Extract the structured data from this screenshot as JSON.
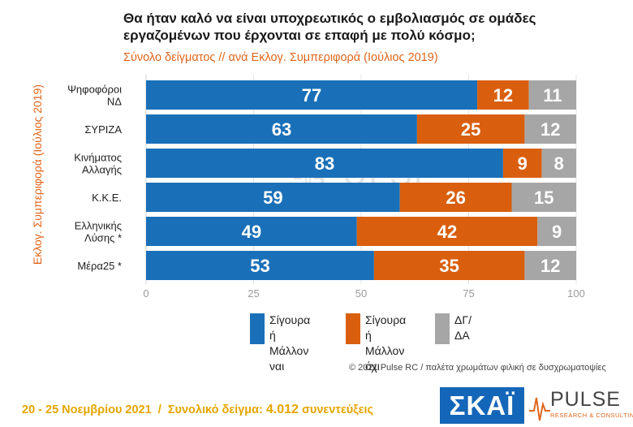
{
  "title": "Θα ήταν καλό να είναι υποχρεωτικός ο εμβολιασμός σε ομάδες εργαζομένων που έρχονται σε επαφή με πολύ κόσμο;",
  "subtitle": "Σύνολο δείγματος // ανά Εκλογ. Συμπεριφορά (Ιούλιος 2019)",
  "chart_data": {
    "type": "bar",
    "orientation": "horizontal",
    "stacked": true,
    "ylabel": "Εκλογ. Συμπεριφορά (Ιούλιος 2019)",
    "xlim": [
      0,
      100
    ],
    "xticks": [
      "0",
      "25",
      "50",
      "75",
      "100"
    ],
    "categories": [
      "Ψηφοφόροι\nΝΔ",
      "ΣΥΡΙΖΑ",
      "Κινήματος\nΑλλαγής",
      "Κ.Κ.Ε.",
      "Ελληνικής\nΛύσης *",
      "Μέρα25 *"
    ],
    "series": [
      {
        "name": "Σίγουρα ή\nΜάλλον ναι",
        "color": "#1a70b8",
        "values": [
          77,
          63,
          83,
          59,
          49,
          53
        ]
      },
      {
        "name": "Σίγουρα ή\nΜάλλον όχι",
        "color": "#d95f0e",
        "values": [
          12,
          25,
          9,
          26,
          42,
          35
        ]
      },
      {
        "name": "ΔΓ/\nΔΑ",
        "color": "#a6a6a6",
        "values": [
          11,
          12,
          8,
          15,
          9,
          12
        ]
      }
    ],
    "grid": true,
    "legend_position": "bottom"
  },
  "copyright": "© 2021 Pulse RC  /  παλέτα χρωμάτων φιλική σε δυσχρωματοψίες",
  "footer": {
    "dates": "20 - 25  Νοεμβρίου 2021",
    "separator": "/",
    "sample_label": "Συνολικό δείγμα:",
    "sample_value": "4.012",
    "sample_unit": "συνεντεύξεις"
  },
  "logos": {
    "skai": "ΣΚΑΪ",
    "pulse": "PULSE",
    "pulse_sub": "RESEARCH & CONSULTING"
  },
  "watermark": {
    "word": "PULSE",
    "sub": "RESEARCH & CONSULTING"
  }
}
